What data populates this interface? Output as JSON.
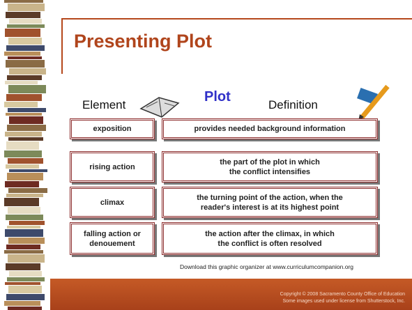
{
  "header": {
    "title": "Presenting Plot"
  },
  "organizer": {
    "headers": {
      "element": "Element",
      "center": "Plot",
      "definition": "Definition"
    },
    "rows": [
      {
        "element": [
          "exposition"
        ],
        "definition": [
          "provides needed background information"
        ]
      },
      {
        "element": [
          "rising action"
        ],
        "definition": [
          "the part of the plot in which",
          "the conflict intensifies"
        ]
      },
      {
        "element": [
          "climax"
        ],
        "definition": [
          "the turning point of the action, when the",
          "reader's interest is at its highest point"
        ]
      },
      {
        "element": [
          "falling action or",
          "denouement"
        ],
        "definition": [
          "the action after the climax, in which",
          "the conflict is often resolved"
        ]
      }
    ]
  },
  "download_note": "Download this graphic organizer at www.curriculumcompanion.org",
  "footer": {
    "lines": [
      "Copyright © 2008 Sacramento County Office of Education",
      "Some images used under license from Shutterstock, Inc."
    ]
  }
}
